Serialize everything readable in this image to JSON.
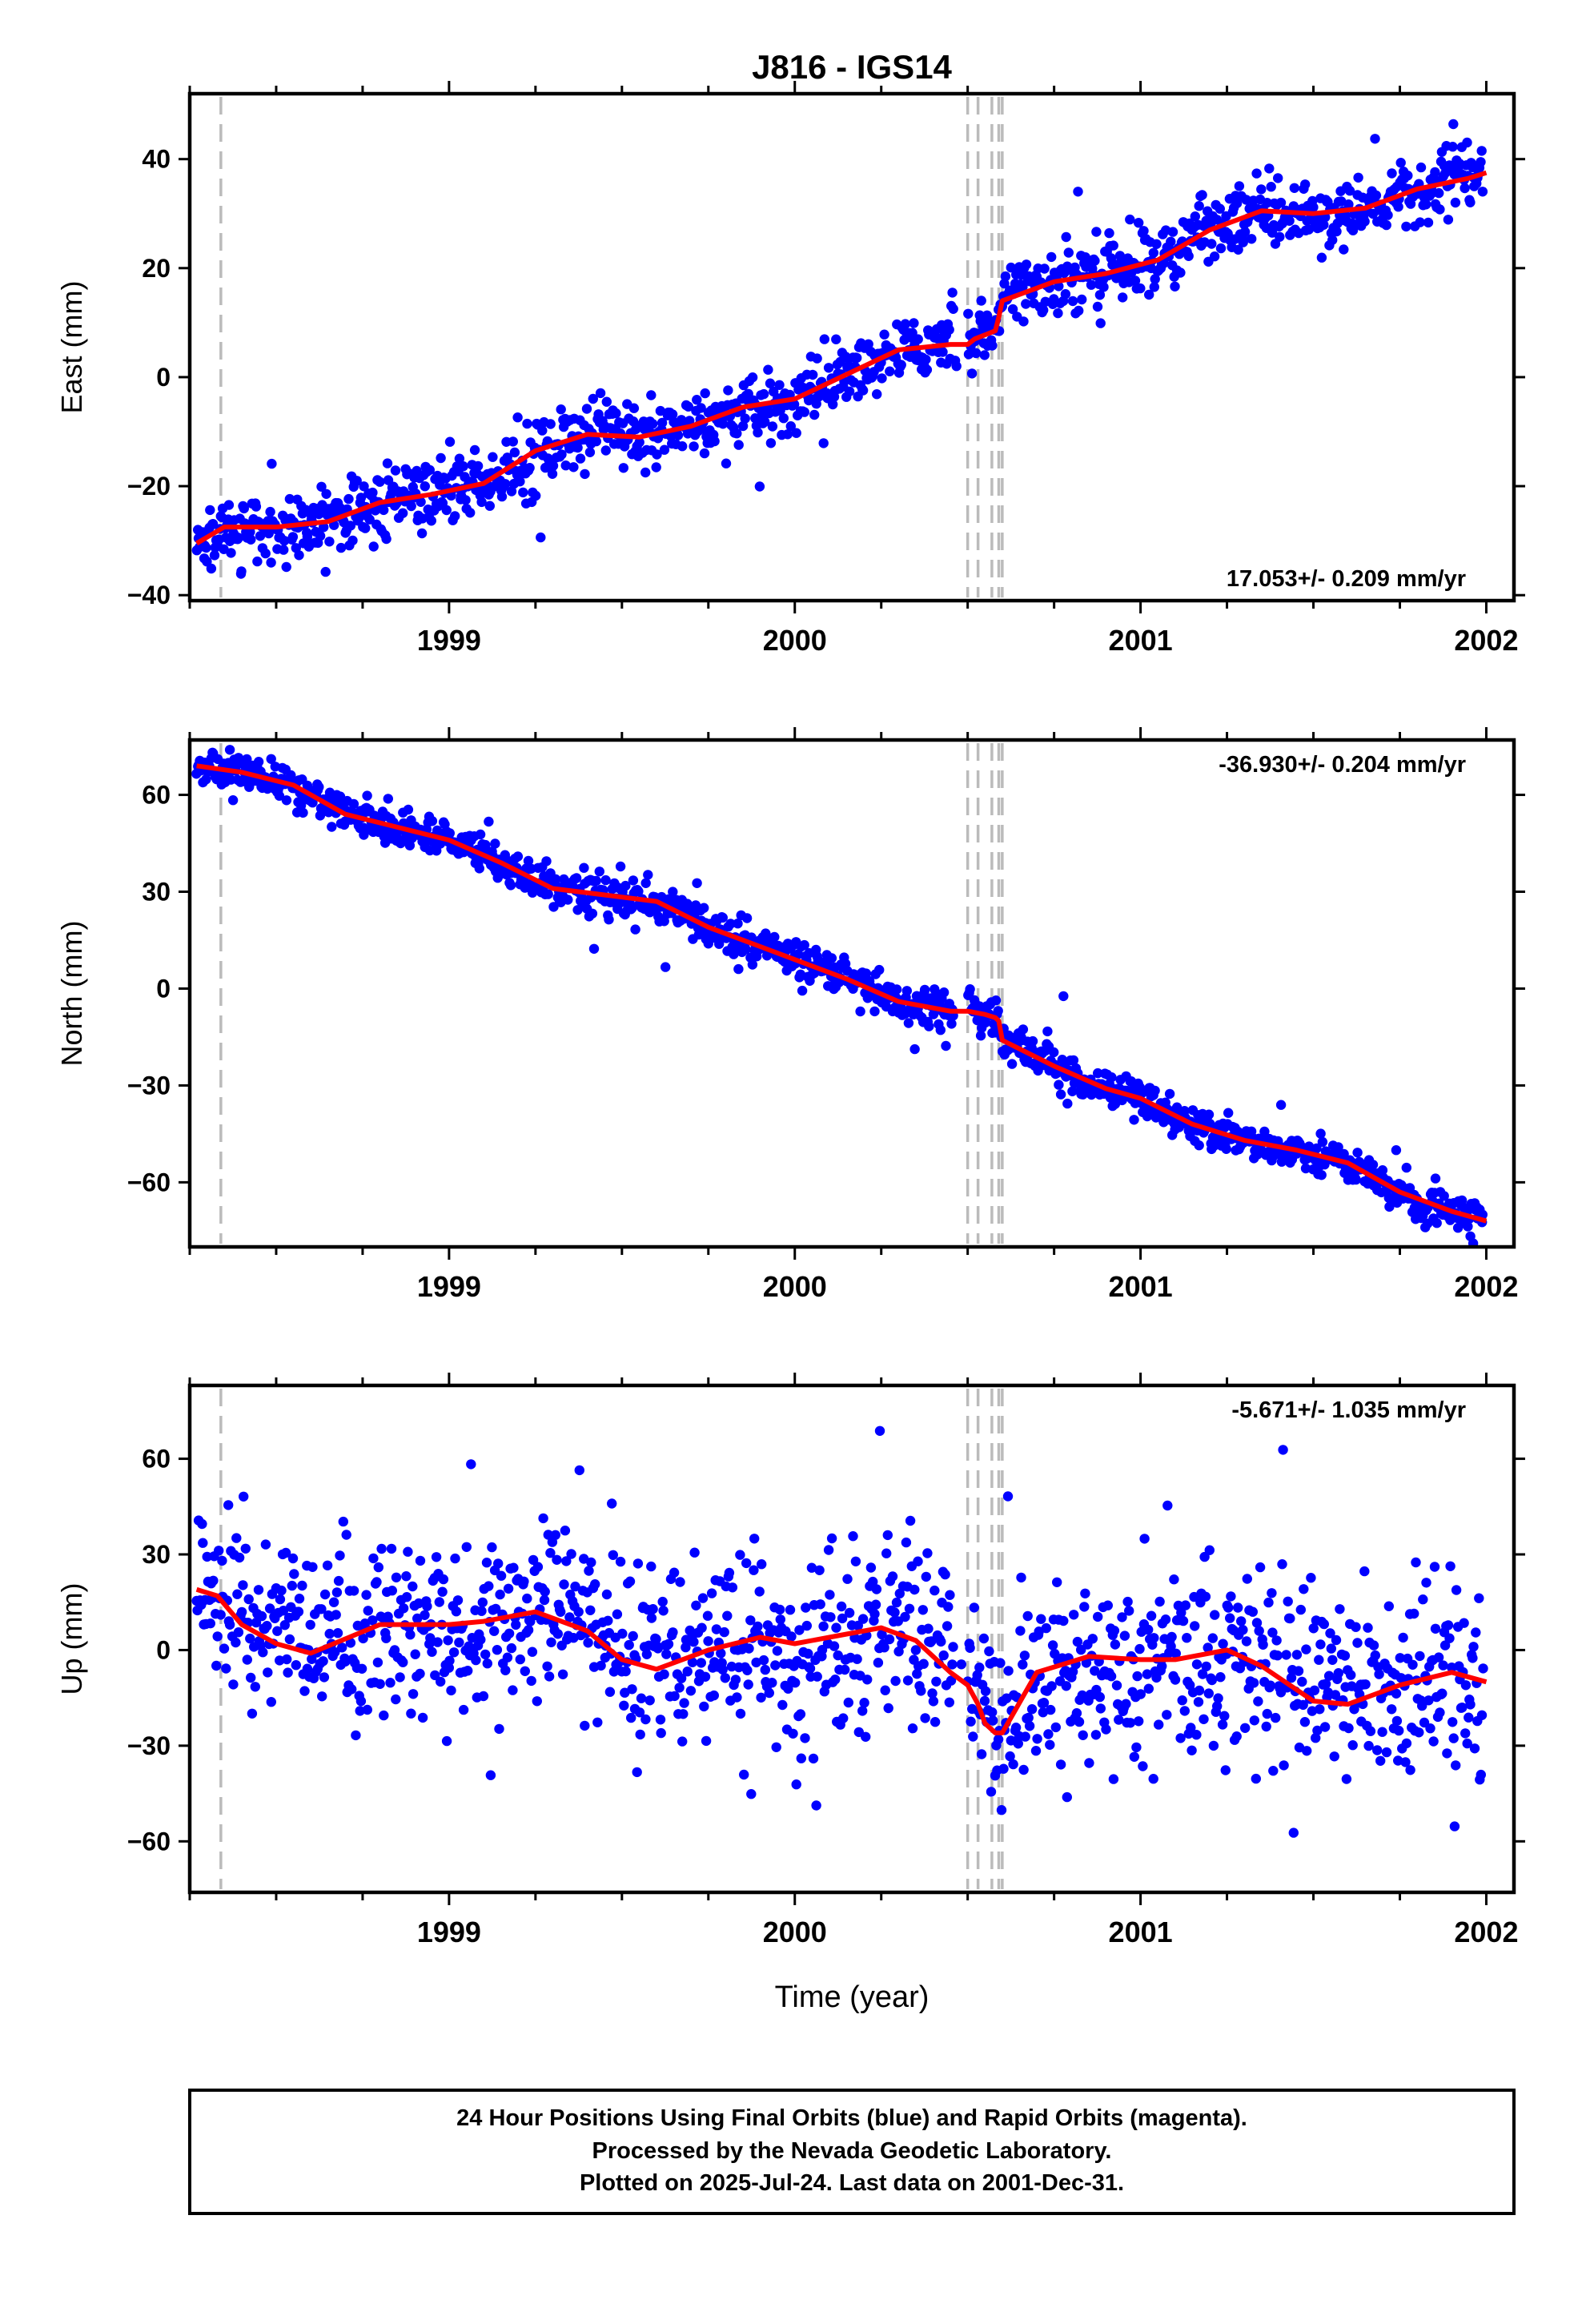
{
  "title": "J816 - IGS14",
  "xlabel": "Time (year)",
  "footer": {
    "line1": "24 Hour Positions Using Final Orbits (blue) and Rapid Orbits (magenta).",
    "line2": "Processed by the Nevada Geodetic Laboratory.",
    "line3": "Plotted on 2025-Jul-24. Last data on 2001-Dec-31."
  },
  "colors": {
    "data": "#0000ff",
    "model": "#ff0000",
    "event_lines": "#bbbbbb",
    "axis": "#000000"
  },
  "chart_data": [
    {
      "type": "scatter",
      "ylabel": "East (mm)",
      "rate_label": "17.053+/- 0.209 mm/yr",
      "rate_position": "bottom-right",
      "xlim": [
        1998.25,
        2002.08
      ],
      "ylim": [
        -41,
        52
      ],
      "xticks": [
        1999,
        2000,
        2001,
        2002
      ],
      "yticks": [
        -40,
        -20,
        0,
        20,
        40
      ],
      "model_curve": {
        "x": [
          1998.27,
          1998.35,
          1998.5,
          1998.65,
          1998.8,
          1998.95,
          1999.1,
          1999.25,
          1999.4,
          1999.55,
          1999.7,
          1999.85,
          2000.0,
          2000.15,
          2000.3,
          2000.45,
          2000.5,
          2000.52,
          2000.56,
          2000.58,
          2000.59,
          2000.6,
          2000.75,
          2000.9,
          2001.05,
          2001.2,
          2001.35,
          2001.5,
          2001.65,
          2001.8,
          2001.95,
          2002.0
        ],
        "y": [
          -30.5,
          -27.5,
          -27.5,
          -26.5,
          -23,
          -21.5,
          -19.5,
          -13.5,
          -10.5,
          -11,
          -9,
          -5.5,
          -4,
          0.5,
          5,
          6,
          6,
          7,
          8,
          8.5,
          11,
          14,
          17.5,
          19,
          21.5,
          27,
          30.5,
          30,
          31,
          34.5,
          36.5,
          37.5
        ]
      },
      "scatter_model": {
        "kind": "east",
        "x_start": 1998.27,
        "x_end": 2001.99,
        "count": 1230,
        "noise": 3,
        "gap": [
          2000.46,
          2000.5
        ]
      }
    },
    {
      "type": "scatter",
      "ylabel": "North (mm)",
      "rate_label": "-36.930+/- 0.204 mm/yr",
      "rate_position": "top-right",
      "xlim": [
        1998.25,
        2002.08
      ],
      "ylim": [
        -80,
        77
      ],
      "xticks": [
        1999,
        2000,
        2001,
        2002
      ],
      "yticks": [
        -60,
        -30,
        0,
        30,
        60
      ],
      "model_curve": {
        "x": [
          1998.27,
          1998.4,
          1998.55,
          1998.7,
          1998.85,
          1999.0,
          1999.15,
          1999.3,
          1999.45,
          1999.6,
          1999.75,
          1999.9,
          2000.0,
          2000.15,
          2000.3,
          2000.45,
          2000.5,
          2000.55,
          2000.58,
          2000.59,
          2000.6,
          2000.75,
          2000.9,
          2001.0,
          2001.15,
          2001.3,
          2001.45,
          2001.6,
          2001.75,
          2001.9,
          2002.0
        ],
        "y": [
          69,
          67,
          63,
          54,
          50,
          46,
          39,
          31,
          29,
          27,
          19,
          13,
          9,
          3,
          -4,
          -7,
          -7,
          -8,
          -9,
          -10,
          -16,
          -24,
          -31,
          -34,
          -42,
          -47,
          -50,
          -54,
          -63,
          -69,
          -72
        ]
      },
      "scatter_model": {
        "kind": "north",
        "x_start": 1998.27,
        "x_end": 2001.99,
        "count": 1230,
        "noise": 3,
        "gap": [
          2000.46,
          2000.5
        ]
      }
    },
    {
      "type": "scatter",
      "ylabel": "Up (mm)",
      "rate_label": "-5.671+/- 1.035 mm/yr",
      "rate_position": "top-right",
      "xlim": [
        1998.25,
        2002.08
      ],
      "ylim": [
        -76,
        83
      ],
      "xticks": [
        1999,
        2000,
        2001,
        2002
      ],
      "yticks": [
        -60,
        -30,
        0,
        30,
        60
      ],
      "model_curve": {
        "x": [
          1998.27,
          1998.33,
          1998.4,
          1998.5,
          1998.6,
          1998.8,
          1999.0,
          1999.1,
          1999.25,
          1999.4,
          1999.5,
          1999.6,
          1999.75,
          1999.9,
          2000.0,
          2000.15,
          2000.25,
          2000.35,
          2000.45,
          2000.5,
          2000.53,
          2000.55,
          2000.58,
          2000.6,
          2000.7,
          2000.85,
          2001.0,
          2001.1,
          2001.25,
          2001.35,
          2001.5,
          2001.6,
          2001.75,
          2001.9,
          2002.0
        ],
        "y": [
          19,
          17,
          8,
          2,
          -1,
          8,
          8,
          9,
          12,
          6,
          -3,
          -6,
          0,
          4,
          2,
          5,
          7,
          3,
          -7,
          -11,
          -17,
          -23,
          -26,
          -26,
          -7,
          -2,
          -3,
          -3,
          0,
          -5,
          -16,
          -17,
          -11,
          -7,
          -10
        ]
      },
      "scatter_model": {
        "kind": "up",
        "x_start": 1998.27,
        "x_end": 2001.99,
        "count": 1230,
        "noise": 14,
        "gap": [
          2000.46,
          2000.5
        ]
      }
    }
  ],
  "event_lines": {
    "x": [
      1998.34,
      2000.5,
      2000.53,
      2000.57,
      2000.59,
      2000.6
    ],
    "style": "dashed"
  }
}
